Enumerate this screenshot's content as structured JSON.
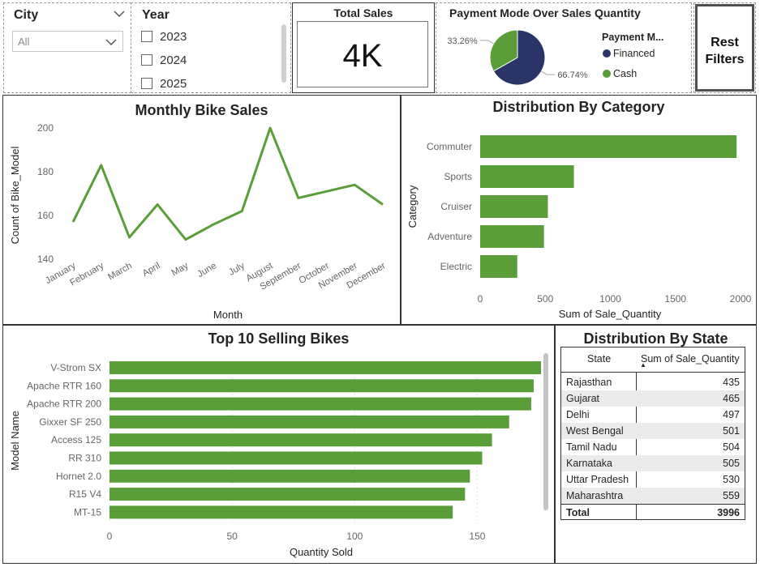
{
  "city_slicer": {
    "title": "City",
    "selected": "All"
  },
  "year_slicer": {
    "title": "Year",
    "options": [
      "2023",
      "2024",
      "2025"
    ]
  },
  "total_sales": {
    "title": "Total Sales",
    "value": "4K"
  },
  "reset_button": {
    "label_line1": "Rest",
    "label_line2": "Filters"
  },
  "chart_data": [
    {
      "type": "pie",
      "title": "Payment Mode Over Sales Quantity",
      "legend_title": "Payment M...",
      "legend_position": "right",
      "slices": [
        {
          "name": "Financed",
          "value": 66.74,
          "label": "66.74%",
          "color": "#2b3467"
        },
        {
          "name": "Cash",
          "value": 33.26,
          "label": "33.26%",
          "color": "#5a9e3a"
        }
      ]
    },
    {
      "type": "line",
      "title": "Monthly Bike Sales",
      "xlabel": "Month",
      "ylabel": "Count of Bike_Model",
      "ylim": [
        140,
        200
      ],
      "yticks": [
        140,
        160,
        180,
        200
      ],
      "grid": false,
      "categories": [
        "January",
        "February",
        "March",
        "April",
        "May",
        "June",
        "July",
        "August",
        "September",
        "October",
        "November",
        "December"
      ],
      "series": [
        {
          "values": [
            157,
            183,
            150,
            165,
            149,
            156,
            162,
            200,
            168,
            171,
            174,
            165
          ],
          "color": "#5a9e3a"
        }
      ]
    },
    {
      "type": "bar",
      "orientation": "horizontal",
      "title": "Distribution By Category",
      "xlabel": "Sum of Sale_Quantity",
      "ylabel": "Category",
      "xlim": [
        0,
        2000
      ],
      "xticks": [
        0,
        500,
        1000,
        1500,
        2000
      ],
      "categories": [
        "Commuter",
        "Sports",
        "Cruiser",
        "Adventure",
        "Electric"
      ],
      "values": [
        1970,
        720,
        520,
        490,
        285
      ],
      "color": "#5a9e3a"
    },
    {
      "type": "bar",
      "orientation": "horizontal",
      "title": "Top 10 Selling Bikes",
      "xlabel": "Quantity Sold",
      "ylabel": "Model Name",
      "xlim": [
        0,
        175
      ],
      "xticks": [
        0,
        50,
        100,
        150
      ],
      "categories": [
        "V-Strom SX",
        "Apache RTR 160",
        "Apache RTR 200",
        "Gixxer SF 250",
        "Access 125",
        "RR 310",
        "Hornet 2.0",
        "R15 V4",
        "MT-15"
      ],
      "values": [
        176,
        173,
        172,
        163,
        156,
        152,
        147,
        145,
        140
      ],
      "color": "#5a9e3a"
    }
  ],
  "state_table": {
    "title": "Distribution By State",
    "headers": [
      "State",
      "Sum of Sale_Quantity"
    ],
    "sort_indicator": "▲",
    "rows": [
      [
        "Rajasthan",
        "435"
      ],
      [
        "Gujarat",
        "465"
      ],
      [
        "Delhi",
        "497"
      ],
      [
        "West Bengal",
        "501"
      ],
      [
        "Tamil Nadu",
        "504"
      ],
      [
        "Karnataka",
        "505"
      ],
      [
        "Uttar Pradesh",
        "530"
      ],
      [
        "Maharashtra",
        "559"
      ]
    ],
    "total": [
      "Total",
      "3996"
    ]
  }
}
